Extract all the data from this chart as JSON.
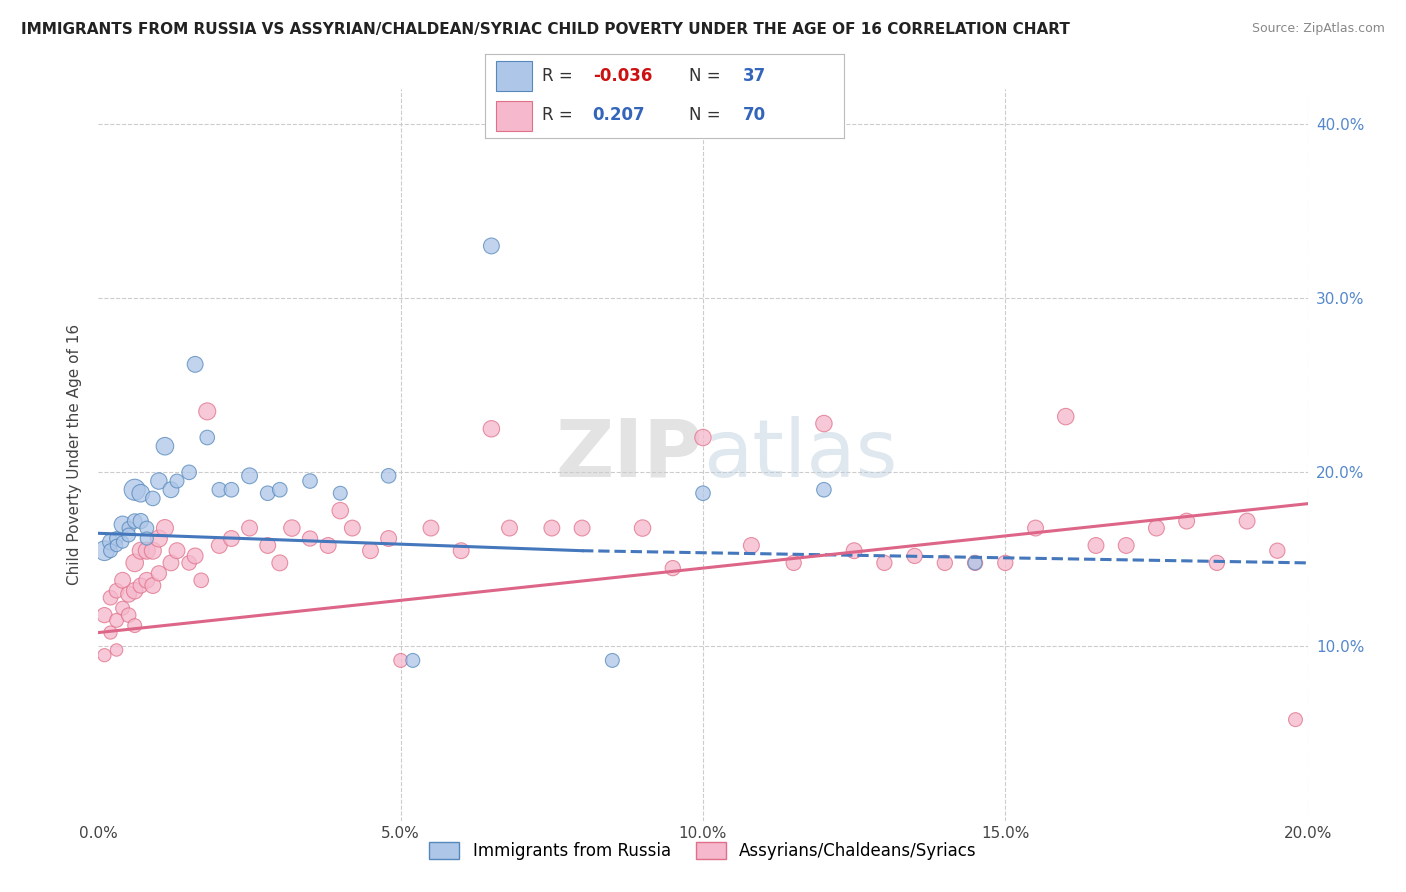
{
  "title": "IMMIGRANTS FROM RUSSIA VS ASSYRIAN/CHALDEAN/SYRIAC CHILD POVERTY UNDER THE AGE OF 16 CORRELATION CHART",
  "source": "Source: ZipAtlas.com",
  "ylabel": "Child Poverty Under the Age of 16",
  "xlim": [
    0.0,
    0.2
  ],
  "ylim": [
    0.0,
    0.42
  ],
  "xticks": [
    0.0,
    0.05,
    0.1,
    0.15,
    0.2
  ],
  "xtick_labels": [
    "0.0%",
    "5.0%",
    "10.0%",
    "15.0%",
    "20.0%"
  ],
  "yticks": [
    0.0,
    0.1,
    0.2,
    0.3,
    0.4
  ],
  "ytick_labels_right": [
    "",
    "10.0%",
    "20.0%",
    "30.0%",
    "40.0%"
  ],
  "background_color": "#ffffff",
  "grid_color": "#cccccc",
  "legend_R1": "-0.036",
  "legend_N1": "37",
  "legend_R2": "0.207",
  "legend_N2": "70",
  "color_blue": "#aec6e8",
  "color_pink": "#f5b8cc",
  "edge_blue": "#5588bb",
  "edge_pink": "#e0708a",
  "line_blue_solid": "#4477bb",
  "line_pink_solid": "#dd6688",
  "series1_label": "Immigrants from Russia",
  "series2_label": "Assyrians/Chaldeans/Syriacs",
  "blue_trend": [
    0.0,
    0.165,
    0.08,
    0.155,
    0.2,
    0.148
  ],
  "pink_trend": [
    0.0,
    0.108,
    0.2,
    0.182
  ],
  "blue_x": [
    0.001,
    0.002,
    0.002,
    0.003,
    0.003,
    0.004,
    0.004,
    0.005,
    0.005,
    0.006,
    0.006,
    0.007,
    0.007,
    0.008,
    0.008,
    0.009,
    0.01,
    0.011,
    0.012,
    0.013,
    0.015,
    0.016,
    0.018,
    0.02,
    0.022,
    0.025,
    0.028,
    0.03,
    0.035,
    0.04,
    0.048,
    0.052,
    0.065,
    0.085,
    0.1,
    0.12,
    0.145
  ],
  "blue_y": [
    0.155,
    0.16,
    0.155,
    0.162,
    0.158,
    0.17,
    0.16,
    0.168,
    0.164,
    0.19,
    0.172,
    0.188,
    0.172,
    0.168,
    0.162,
    0.185,
    0.195,
    0.215,
    0.19,
    0.195,
    0.2,
    0.262,
    0.22,
    0.19,
    0.19,
    0.198,
    0.188,
    0.19,
    0.195,
    0.188,
    0.198,
    0.092,
    0.33,
    0.092,
    0.188,
    0.19,
    0.148
  ],
  "blue_size": [
    200,
    130,
    100,
    100,
    80,
    150,
    80,
    90,
    100,
    230,
    110,
    160,
    120,
    100,
    90,
    110,
    140,
    160,
    130,
    100,
    110,
    130,
    110,
    110,
    110,
    130,
    110,
    110,
    110,
    100,
    110,
    100,
    130,
    100,
    110,
    110,
    100
  ],
  "pink_x": [
    0.001,
    0.001,
    0.002,
    0.002,
    0.003,
    0.003,
    0.003,
    0.004,
    0.004,
    0.005,
    0.005,
    0.006,
    0.006,
    0.006,
    0.007,
    0.007,
    0.008,
    0.008,
    0.009,
    0.009,
    0.01,
    0.01,
    0.011,
    0.012,
    0.013,
    0.015,
    0.016,
    0.017,
    0.018,
    0.02,
    0.022,
    0.025,
    0.028,
    0.03,
    0.032,
    0.035,
    0.038,
    0.04,
    0.042,
    0.045,
    0.048,
    0.05,
    0.055,
    0.06,
    0.065,
    0.068,
    0.075,
    0.08,
    0.09,
    0.095,
    0.1,
    0.108,
    0.115,
    0.12,
    0.125,
    0.13,
    0.135,
    0.14,
    0.145,
    0.15,
    0.155,
    0.16,
    0.165,
    0.17,
    0.175,
    0.18,
    0.185,
    0.19,
    0.195,
    0.198
  ],
  "pink_y": [
    0.118,
    0.095,
    0.128,
    0.108,
    0.132,
    0.115,
    0.098,
    0.138,
    0.122,
    0.13,
    0.118,
    0.148,
    0.132,
    0.112,
    0.155,
    0.135,
    0.155,
    0.138,
    0.155,
    0.135,
    0.162,
    0.142,
    0.168,
    0.148,
    0.155,
    0.148,
    0.152,
    0.138,
    0.235,
    0.158,
    0.162,
    0.168,
    0.158,
    0.148,
    0.168,
    0.162,
    0.158,
    0.178,
    0.168,
    0.155,
    0.162,
    0.092,
    0.168,
    0.155,
    0.225,
    0.168,
    0.168,
    0.168,
    0.168,
    0.145,
    0.22,
    0.158,
    0.148,
    0.228,
    0.155,
    0.148,
    0.152,
    0.148,
    0.148,
    0.148,
    0.168,
    0.232,
    0.158,
    0.158,
    0.168,
    0.172,
    0.148,
    0.172,
    0.155,
    0.058
  ],
  "pink_size": [
    120,
    90,
    110,
    90,
    110,
    100,
    80,
    130,
    100,
    130,
    110,
    160,
    140,
    100,
    150,
    120,
    150,
    130,
    150,
    130,
    150,
    120,
    150,
    130,
    130,
    110,
    130,
    110,
    150,
    130,
    130,
    130,
    130,
    130,
    140,
    120,
    130,
    140,
    130,
    130,
    130,
    100,
    130,
    130,
    140,
    130,
    130,
    130,
    140,
    120,
    140,
    130,
    120,
    140,
    130,
    120,
    120,
    120,
    120,
    120,
    130,
    140,
    130,
    130,
    130,
    130,
    120,
    130,
    120,
    100
  ]
}
